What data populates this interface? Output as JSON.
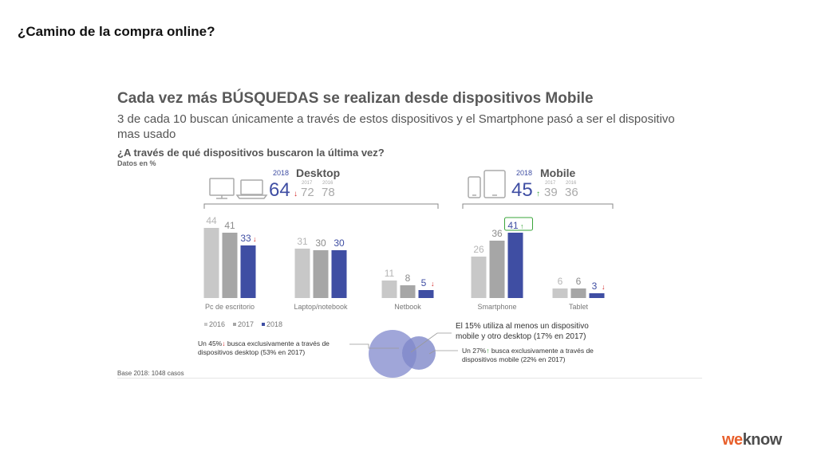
{
  "page_title": "¿Camino de la compra online?",
  "headline": "Cada vez más BÚSQUEDAS se realizan desde dispositivos Mobile",
  "subheadline": "3 de cada 10 buscan únicamente a través de estos dispositivos y el Smartphone pasó a ser el dispositivo mas usado",
  "question": "¿A través de qué dispositivos buscaron la última vez?",
  "units_note": "Datos en %",
  "footnote": "Base 2018: 1048 casos",
  "logo": {
    "part1": "we",
    "part2": "know"
  },
  "colors": {
    "y2016": "#c8c8c8",
    "y2017": "#a6a6a6",
    "y2018": "#3f4ea3",
    "down": "#d11f1f",
    "up": "#3aa53a",
    "bubble": "#8f97d2"
  },
  "groups": [
    {
      "name": "Desktop",
      "year_label": "2018",
      "value": "64",
      "trend": "down",
      "prev": [
        {
          "year": "2017",
          "value": "72"
        },
        {
          "year": "2016",
          "value": "78"
        }
      ],
      "icons": [
        "desktop-monitor-icon",
        "laptop-icon"
      ]
    },
    {
      "name": "Mobile",
      "year_label": "2018",
      "value": "45",
      "trend": "up",
      "prev": [
        {
          "year": "2017",
          "value": "39"
        },
        {
          "year": "2016",
          "value": "36"
        }
      ],
      "icons": [
        "tablet-icon",
        "smartphone-icon"
      ]
    }
  ],
  "chart_data": {
    "type": "bar",
    "categories": [
      "Pc de escritorio",
      "Laptop/notebook",
      "Netbook",
      "Smartphone",
      "Tablet"
    ],
    "series": [
      {
        "name": "2016",
        "values": [
          44,
          31,
          11,
          26,
          6
        ]
      },
      {
        "name": "2017",
        "values": [
          41,
          30,
          8,
          36,
          6
        ]
      },
      {
        "name": "2018",
        "values": [
          33,
          30,
          5,
          41,
          3
        ]
      }
    ],
    "trend_2018": [
      "down",
      "",
      "down",
      "up",
      "down"
    ],
    "ylim": [
      0,
      50
    ],
    "legend_position": "bottom-left",
    "grid": false
  },
  "venn": {
    "desktop_label": "Un 45% busca exclusivamente a través de dispositivos desktop (53% en 2017)",
    "desktop_label_l1": "Un 45%",
    "desktop_label_l1b": " busca exclusivamente a través de",
    "desktop_label_l2": "dispositivos desktop (53% en 2017)",
    "both_label_l1": "El 15% utiliza al menos un dispositivo",
    "both_label_l2": "mobile y otro desktop (17% en 2017)",
    "mobile_label_l1": "Un 27%",
    "mobile_label_l1b": " busca exclusivamente a través de",
    "mobile_label_l2": "dispositivos mobile (22% en 2017)"
  }
}
